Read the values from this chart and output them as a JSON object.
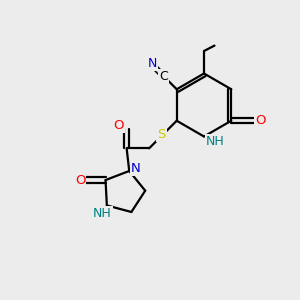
{
  "background_color": "#ececec",
  "atom_colors": {
    "C": "#000000",
    "N": "#0000cc",
    "O": "#ff0000",
    "S": "#cccc00",
    "NH": "#008080",
    "H": "#008080"
  },
  "bond_color": "#000000",
  "figsize": [
    3.0,
    3.0
  ],
  "dpi": 100,
  "xlim": [
    0,
    10
  ],
  "ylim": [
    0,
    10
  ]
}
